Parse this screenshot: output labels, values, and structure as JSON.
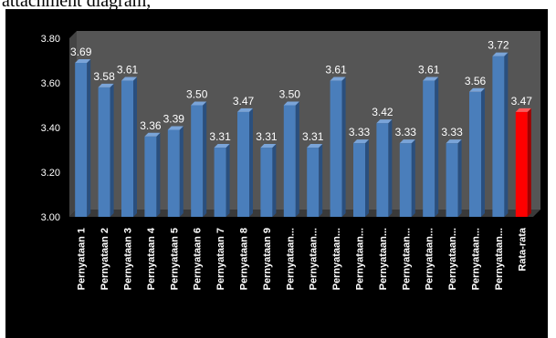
{
  "caption": "attachment diagram,",
  "chart_data": {
    "type": "bar",
    "title": "",
    "xlabel": "",
    "ylabel": "",
    "ylim": [
      3.0,
      3.8
    ],
    "yticks": [
      "3.00",
      "3.20",
      "3.40",
      "3.60",
      "3.80"
    ],
    "grid": false,
    "legend": "none",
    "categories": [
      "Pernyataan 1",
      "Pernyataan 2",
      "Pernyataan 3",
      "Pernyataan 4",
      "Pernyataan 5",
      "Pernyataan 6",
      "Pernyataan 7",
      "Pernyataan 8",
      "Pernyataan 9",
      "Pernyataan...",
      "Pernyataan...",
      "Pernyataan...",
      "Pernyataan...",
      "Pernyataan...",
      "Pernyataan...",
      "Pernyataan...",
      "Pernyataan...",
      "Pernyataan...",
      "Pernyataan...",
      "Rata-rata"
    ],
    "values": [
      3.69,
      3.58,
      3.61,
      3.36,
      3.39,
      3.5,
      3.31,
      3.47,
      3.31,
      3.5,
      3.31,
      3.61,
      3.33,
      3.42,
      3.33,
      3.61,
      3.33,
      3.56,
      3.72,
      3.47
    ],
    "value_labels": [
      "3.69",
      "3.58",
      "3.61",
      "3.36",
      "3.39",
      "3.50",
      "3.31",
      "3.47",
      "3.31",
      "3.50",
      "3.31",
      "3.61",
      "3.33",
      "3.42",
      "3.33",
      "3.61",
      "3.33",
      "3.56",
      "3.72",
      "3.47"
    ],
    "colors": {
      "bar": "#4a7ebb",
      "bar_side": "#2a4f7e",
      "bar_top": "#7aa4d8",
      "average_bar": "#ff0000",
      "average_side": "#a00000",
      "average_top": "#ff5a5a",
      "background": "#000000",
      "plot_wall": "#555555",
      "text": "#ffffff"
    }
  }
}
